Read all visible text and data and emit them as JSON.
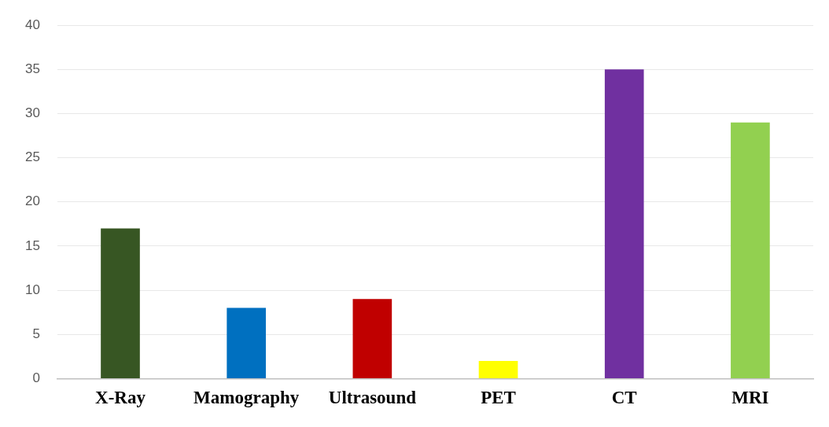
{
  "chart_data": {
    "type": "bar",
    "categories": [
      "X-Ray",
      "Mamography",
      "Ultrasound",
      "PET",
      "CT",
      "MRI"
    ],
    "values": [
      17,
      8,
      9,
      2,
      35,
      29
    ],
    "colors": [
      "#375623",
      "#0070c0",
      "#c00000",
      "#ffff00",
      "#7030a0",
      "#92d050"
    ],
    "ylim": [
      0,
      40
    ],
    "yticks": [
      0,
      5,
      10,
      15,
      20,
      25,
      30,
      35,
      40
    ],
    "grid": "y"
  }
}
